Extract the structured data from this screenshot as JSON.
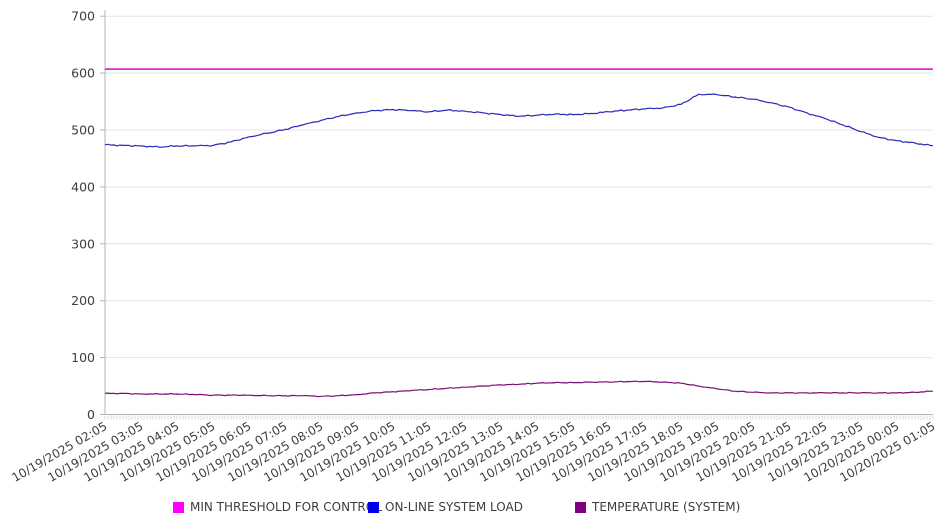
{
  "chart_data": {
    "type": "line",
    "title": "",
    "xlabel": "",
    "ylabel": "",
    "ylim": [
      0,
      700
    ],
    "yticks": [
      0,
      100,
      200,
      300,
      400,
      500,
      600,
      700
    ],
    "grid": "horizontal",
    "legend_position": "bottom",
    "sample_interval_minutes": 30,
    "minor_tick_interval_minutes": 5,
    "points_per_label": 2,
    "x_tick_labels": [
      "10/19/2025 02:05",
      "10/19/2025 03:05",
      "10/19/2025 04:05",
      "10/19/2025 05:05",
      "10/19/2025 06:05",
      "10/19/2025 07:05",
      "10/19/2025 08:05",
      "10/19/2025 09:05",
      "10/19/2025 10:05",
      "10/19/2025 11:05",
      "10/19/2025 12:05",
      "10/19/2025 13:05",
      "10/19/2025 14:05",
      "10/19/2025 15:05",
      "10/19/2025 16:05",
      "10/19/2025 17:05",
      "10/19/2025 18:05",
      "10/19/2025 19:05",
      "10/19/2025 20:05",
      "10/19/2025 21:05",
      "10/19/2025 22:05",
      "10/19/2025 23:05",
      "10/20/2025 00:05",
      "10/20/2025 01:05"
    ],
    "series": [
      {
        "name": "MIN THRESHOLD FOR CONTROL",
        "color": "#e02ad6",
        "legend_color": "#ff00ff",
        "constant": 607
      },
      {
        "name": "ON-LINE SYSTEM LOAD",
        "color": "#2a2ab8",
        "legend_color": "#0000ee",
        "values": [
          474,
          473,
          472,
          470,
          472,
          472,
          473,
          479,
          488,
          494,
          501,
          509,
          517,
          524,
          530,
          534,
          536,
          534,
          532,
          535,
          533,
          530,
          527,
          524,
          526,
          528,
          527,
          529,
          532,
          535,
          537,
          539,
          545,
          563,
          562,
          558,
          554,
          548,
          540,
          530,
          520,
          509,
          497,
          487,
          481,
          477,
          472
        ]
      },
      {
        "name": "TEMPERATURE (SYSTEM)",
        "color": "#7b0f77",
        "legend_color": "#800080",
        "values": [
          37,
          37,
          36,
          36,
          36,
          35,
          34,
          34,
          34,
          33,
          33,
          33,
          32,
          33,
          35,
          38,
          40,
          42,
          44,
          46,
          48,
          50,
          52,
          53,
          55,
          56,
          56,
          57,
          57,
          58,
          58,
          57,
          55,
          50,
          45,
          41,
          39,
          38,
          38,
          38,
          38,
          38,
          38,
          38,
          38,
          39,
          41
        ]
      }
    ]
  }
}
